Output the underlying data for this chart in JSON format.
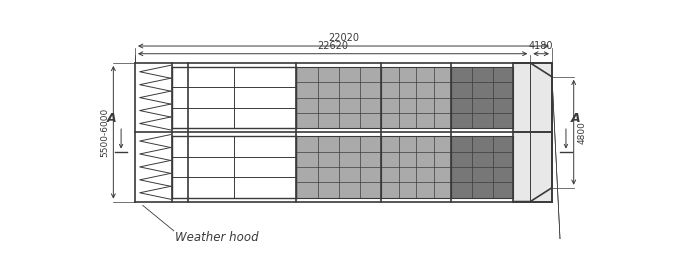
{
  "bg_color": "#ffffff",
  "lc": "#3a3a3a",
  "dim_22020": "22020",
  "dim_22620": "22620",
  "dim_4180": "4180",
  "dim_5500_6000": "5500-6000",
  "dim_4800": "4800",
  "label_A": "A",
  "label_weather_hood": "Weather hood",
  "coarse_fill": "#ffffff",
  "dense_fill1": "#aaaaaa",
  "dense_fill2": "#777777",
  "outlet_fill": "#e8e8e8"
}
